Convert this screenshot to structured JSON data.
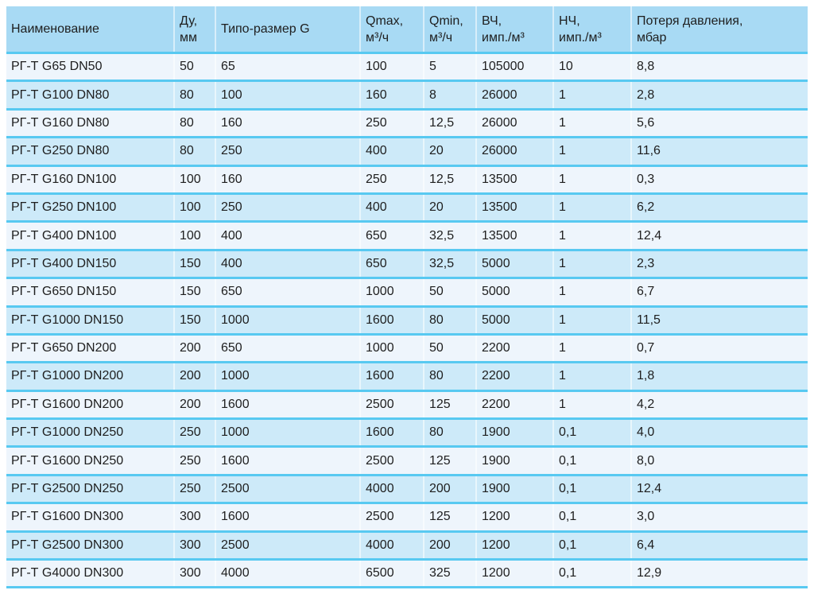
{
  "table": {
    "title": "specs-table-rg-t",
    "columns": [
      {
        "key": "name",
        "label": "Наименование"
      },
      {
        "key": "du",
        "label": "Ду,\nмм"
      },
      {
        "key": "g",
        "label": "Типо-размер G"
      },
      {
        "key": "qmax",
        "label": "Qmax,\nм³/ч"
      },
      {
        "key": "qmin",
        "label": "Qmin,\nм³/ч"
      },
      {
        "key": "hf",
        "label": "ВЧ,\nимп./м³"
      },
      {
        "key": "lf",
        "label": "НЧ,\nимп./м³"
      },
      {
        "key": "dp",
        "label": "Потеря давления,\nмбар"
      }
    ],
    "rows": [
      [
        "РГ-Т G65 DN50",
        "50",
        "65",
        "100",
        "5",
        "105000",
        "10",
        "8,8"
      ],
      [
        "РГ-Т G100 DN80",
        "80",
        "100",
        "160",
        "8",
        "26000",
        "1",
        "2,8"
      ],
      [
        "РГ-Т G160 DN80",
        "80",
        "160",
        "250",
        "12,5",
        "26000",
        "1",
        "5,6"
      ],
      [
        "РГ-Т G250 DN80",
        "80",
        "250",
        "400",
        "20",
        "26000",
        "1",
        "11,6"
      ],
      [
        "РГ-Т G160 DN100",
        "100",
        "160",
        "250",
        "12,5",
        "13500",
        "1",
        "0,3"
      ],
      [
        "РГ-Т G250 DN100",
        "100",
        "250",
        "400",
        "20",
        "13500",
        "1",
        "6,2"
      ],
      [
        "РГ-Т G400 DN100",
        "100",
        "400",
        "650",
        "32,5",
        "13500",
        "1",
        "12,4"
      ],
      [
        "РГ-Т G400 DN150",
        "150",
        "400",
        "650",
        "32,5",
        "5000",
        "1",
        "2,3"
      ],
      [
        "РГ-Т G650 DN150",
        "150",
        "650",
        "1000",
        "50",
        "5000",
        "1",
        "6,7"
      ],
      [
        "РГ-Т G1000 DN150",
        "150",
        "1000",
        "1600",
        "80",
        "5000",
        "1",
        "11,5"
      ],
      [
        "РГ-Т G650 DN200",
        "200",
        "650",
        "1000",
        "50",
        "2200",
        "1",
        "0,7"
      ],
      [
        "РГ-Т G1000 DN200",
        "200",
        "1000",
        "1600",
        "80",
        "2200",
        "1",
        "1,8"
      ],
      [
        "РГ-Т G1600 DN200",
        "200",
        "1600",
        "2500",
        "125",
        "2200",
        "1",
        "4,2"
      ],
      [
        "РГ-Т G1000 DN250",
        "250",
        "1000",
        "1600",
        "80",
        "1900",
        "0,1",
        "4,0"
      ],
      [
        "РГ-Т G1600 DN250",
        "250",
        "1600",
        "2500",
        "125",
        "1900",
        "0,1",
        "8,0"
      ],
      [
        "РГ-Т G2500 DN250",
        "250",
        "2500",
        "4000",
        "200",
        "1900",
        "0,1",
        "12,4"
      ],
      [
        "РГ-Т G1600 DN300",
        "300",
        "1600",
        "2500",
        "125",
        "1200",
        "0,1",
        "3,0"
      ],
      [
        "РГ-Т G2500 DN300",
        "300",
        "2500",
        "4000",
        "200",
        "1200",
        "0,1",
        "6,4"
      ],
      [
        "РГ-Т G4000 DN300",
        "300",
        "4000",
        "6500",
        "325",
        "1200",
        "0,1",
        "12,9"
      ]
    ]
  },
  "colors": {
    "header_bg": "#a8daf4",
    "row_light": "#eef5fc",
    "row_blue": "#cdeaf9",
    "separator": "#58c9f1",
    "text": "#1e1e1e"
  }
}
